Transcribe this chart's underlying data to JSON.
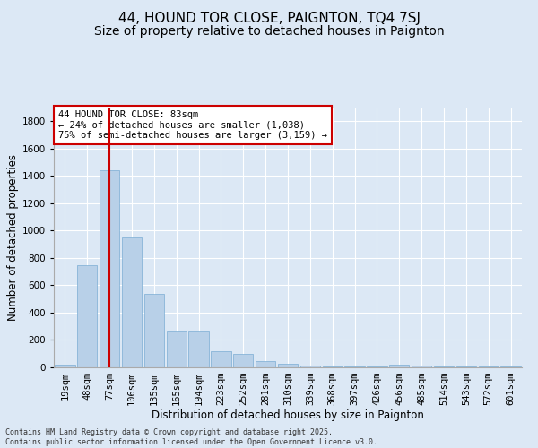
{
  "title": "44, HOUND TOR CLOSE, PAIGNTON, TQ4 7SJ",
  "subtitle": "Size of property relative to detached houses in Paignton",
  "xlabel": "Distribution of detached houses by size in Paignton",
  "ylabel": "Number of detached properties",
  "categories": [
    "19sqm",
    "48sqm",
    "77sqm",
    "106sqm",
    "135sqm",
    "165sqm",
    "194sqm",
    "223sqm",
    "252sqm",
    "281sqm",
    "310sqm",
    "339sqm",
    "368sqm",
    "397sqm",
    "426sqm",
    "456sqm",
    "485sqm",
    "514sqm",
    "543sqm",
    "572sqm",
    "601sqm"
  ],
  "values": [
    20,
    750,
    1440,
    950,
    535,
    270,
    270,
    120,
    100,
    45,
    25,
    15,
    5,
    5,
    5,
    20,
    15,
    5,
    5,
    5,
    5
  ],
  "bar_color": "#b8d0e8",
  "bar_edge_color": "#7aadd4",
  "highlight_index": 2,
  "highlight_line_color": "#cc0000",
  "ylim": [
    0,
    1900
  ],
  "yticks": [
    0,
    200,
    400,
    600,
    800,
    1000,
    1200,
    1400,
    1600,
    1800
  ],
  "annotation_text": "44 HOUND TOR CLOSE: 83sqm\n← 24% of detached houses are smaller (1,038)\n75% of semi-detached houses are larger (3,159) →",
  "annotation_box_color": "#ffffff",
  "annotation_box_edge": "#cc0000",
  "background_color": "#dce8f5",
  "footer_text": "Contains HM Land Registry data © Crown copyright and database right 2025.\nContains public sector information licensed under the Open Government Licence v3.0.",
  "title_fontsize": 11,
  "subtitle_fontsize": 10,
  "axis_label_fontsize": 8.5,
  "tick_fontsize": 7.5,
  "footer_fontsize": 6
}
